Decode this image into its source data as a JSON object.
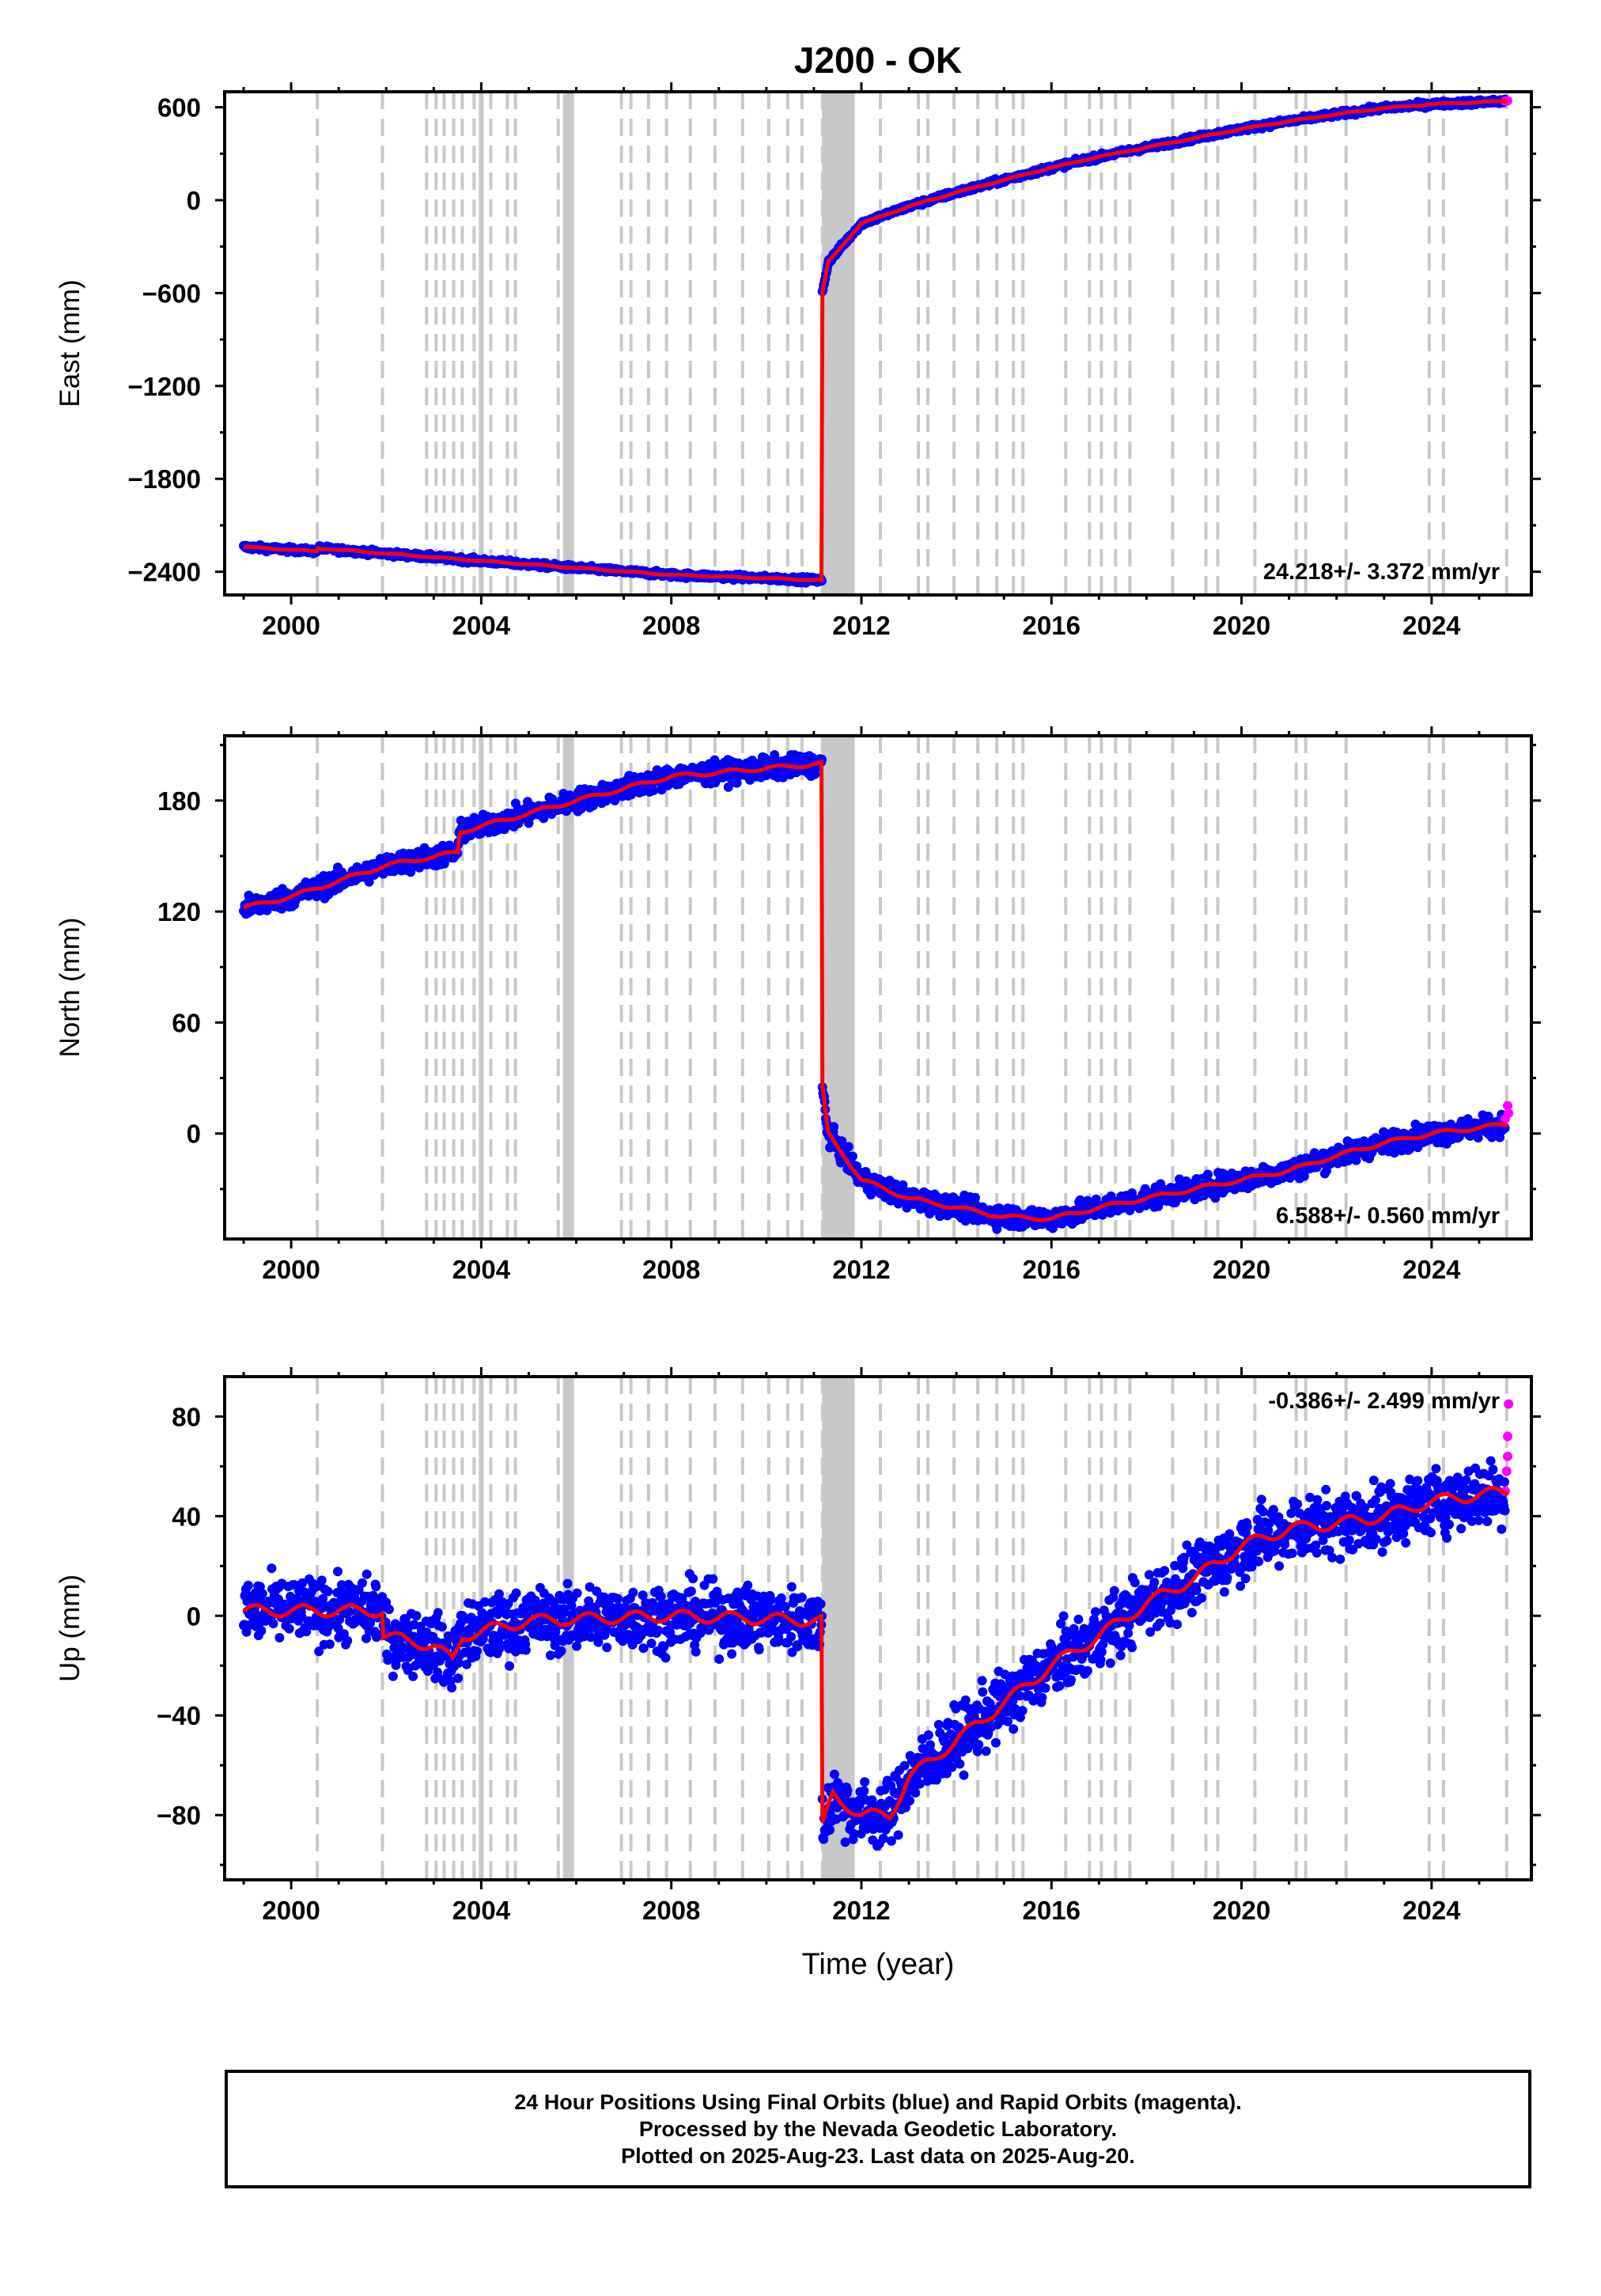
{
  "colors": {
    "final_orbits": "#0000ff",
    "rapid_orbits": "#ff00ff",
    "model": "#ff0000",
    "event_lines": "#c8c8c8",
    "frame": "#000000"
  },
  "chart_data": {
    "type": "scatter",
    "title": "J200 - OK",
    "xlabel": "Time (year)",
    "xlim": [
      1998.6,
      2026.1
    ],
    "x_ticks": [
      2000,
      2004,
      2008,
      2012,
      2016,
      2020,
      2024
    ],
    "x_tick_labels": [
      "2000",
      "2004",
      "2008",
      "2012",
      "2016",
      "2020",
      "2024"
    ],
    "event_lines": [
      2000.55,
      2001.92,
      2002.85,
      2003.05,
      2003.22,
      2003.42,
      2003.6,
      2003.85,
      2004.2,
      2004.55,
      2004.72,
      2005.62,
      2005.78,
      2005.9,
      2006.95,
      2007.15,
      2007.52,
      2007.9,
      2008.4,
      2008.92,
      2009.5,
      2010.05,
      2010.45,
      2010.75,
      2011.18,
      2012.4,
      2013.2,
      2013.4,
      2013.95,
      2014.45,
      2014.85,
      2015.2,
      2015.4,
      2016.3,
      2016.8,
      2017.05,
      2017.35,
      2017.65,
      2018.55,
      2019.25,
      2019.5,
      2020.28,
      2021.15,
      2021.35,
      2022.2,
      2023.95,
      2024.25,
      2025.58
    ],
    "event_bands": [
      [
        2011.17,
        2011.86
      ],
      [
        2005.72,
        2005.95
      ],
      [
        2003.95,
        2004.05
      ]
    ],
    "series_names": [
      "Final Orbits",
      "Rapid Orbits"
    ],
    "panels": [
      {
        "name": "East",
        "ylabel": "East (mm)",
        "ylim": [
          -2550,
          700
        ],
        "y_ticks": [
          -2400,
          -1800,
          -1200,
          -600,
          0,
          600
        ],
        "y_tick_labels": [
          "−2400",
          "−1800",
          "−1200",
          "−600",
          "0",
          "600"
        ],
        "rate_label": "24.218+/- 3.372 mm/yr",
        "rate_position": "bottom-right",
        "model_trend": [
          [
            1999.0,
            -2240
          ],
          [
            2000.55,
            -2268
          ],
          [
            2000.56,
            -2248
          ],
          [
            2004.0,
            -2330
          ],
          [
            2008.0,
            -2420
          ],
          [
            2011.17,
            -2455
          ],
          [
            2011.18,
            -600
          ],
          [
            2011.3,
            -400
          ],
          [
            2012.0,
            -150
          ],
          [
            2013.0,
            -40
          ],
          [
            2014.0,
            50
          ],
          [
            2015.0,
            130
          ],
          [
            2016.0,
            210
          ],
          [
            2017.0,
            280
          ],
          [
            2018.0,
            340
          ],
          [
            2019.0,
            400
          ],
          [
            2020.0,
            460
          ],
          [
            2021.0,
            510
          ],
          [
            2022.0,
            555
          ],
          [
            2023.0,
            595
          ],
          [
            2024.0,
            620
          ],
          [
            2025.6,
            640
          ]
        ],
        "noise": 12,
        "rapid_points": [
          [
            2025.55,
            640
          ],
          [
            2025.6,
            642
          ]
        ]
      },
      {
        "name": "North",
        "ylabel": "North (mm)",
        "ylim": [
          -57,
          215
        ],
        "y_ticks": [
          0,
          60,
          120,
          180
        ],
        "y_tick_labels": [
          "0",
          "60",
          "120",
          "180"
        ],
        "rate_label": "6.588+/- 0.560 mm/yr",
        "rate_position": "bottom-right",
        "model_trend": [
          [
            1999.0,
            122
          ],
          [
            2000.0,
            128
          ],
          [
            2002.0,
            145
          ],
          [
            2003.5,
            152
          ],
          [
            2003.55,
            163
          ],
          [
            2006.0,
            180
          ],
          [
            2008.0,
            193
          ],
          [
            2011.17,
            200
          ],
          [
            2011.18,
            25
          ],
          [
            2011.3,
            0
          ],
          [
            2012.0,
            -25
          ],
          [
            2013.0,
            -35
          ],
          [
            2014.0,
            -40
          ],
          [
            2015.0,
            -45
          ],
          [
            2016.0,
            -46
          ],
          [
            2017.0,
            -40
          ],
          [
            2018.0,
            -35
          ],
          [
            2019.0,
            -30
          ],
          [
            2020.0,
            -25
          ],
          [
            2021.0,
            -20
          ],
          [
            2022.0,
            -12
          ],
          [
            2023.0,
            -5
          ],
          [
            2024.0,
            0
          ],
          [
            2025.6,
            5
          ]
        ],
        "noise": 4,
        "rapid_points": [
          [
            2025.55,
            8
          ],
          [
            2025.6,
            15
          ],
          [
            2025.62,
            11
          ]
        ]
      },
      {
        "name": "Up",
        "ylabel": "Up (mm)",
        "ylim": [
          -106,
          96
        ],
        "y_ticks": [
          -80,
          -40,
          0,
          40,
          80
        ],
        "y_tick_labels": [
          "−80",
          "−40",
          "0",
          "40",
          "80"
        ],
        "rate_label": "-0.386+/- 2.499 mm/yr",
        "rate_position": "top-right",
        "model_trend": [
          [
            1999.0,
            2
          ],
          [
            2001.92,
            2
          ],
          [
            2001.93,
            -8
          ],
          [
            2003.0,
            -12
          ],
          [
            2003.4,
            -18
          ],
          [
            2003.6,
            -8
          ],
          [
            2005.0,
            -2
          ],
          [
            2008.0,
            0
          ],
          [
            2011.17,
            -2
          ],
          [
            2011.18,
            -85
          ],
          [
            2011.4,
            -72
          ],
          [
            2012.0,
            -80
          ],
          [
            2012.6,
            -80
          ],
          [
            2013.0,
            -65
          ],
          [
            2014.0,
            -50
          ],
          [
            2015.0,
            -35
          ],
          [
            2016.0,
            -20
          ],
          [
            2017.0,
            -8
          ],
          [
            2018.0,
            5
          ],
          [
            2019.0,
            15
          ],
          [
            2020.0,
            28
          ],
          [
            2021.0,
            35
          ],
          [
            2022.0,
            37
          ],
          [
            2023.0,
            40
          ],
          [
            2024.0,
            46
          ],
          [
            2025.6,
            50
          ]
        ],
        "noise": 9,
        "rapid_points": [
          [
            2025.55,
            50
          ],
          [
            2025.58,
            58
          ],
          [
            2025.6,
            72
          ],
          [
            2025.62,
            85
          ],
          [
            2025.6,
            64
          ]
        ]
      }
    ]
  },
  "footer": {
    "line1": "24 Hour Positions Using Final Orbits (blue) and Rapid Orbits (magenta).",
    "line2": "Processed by the Nevada Geodetic Laboratory.",
    "line3": "Plotted on 2025-Aug-23. Last data on 2025-Aug-20."
  }
}
